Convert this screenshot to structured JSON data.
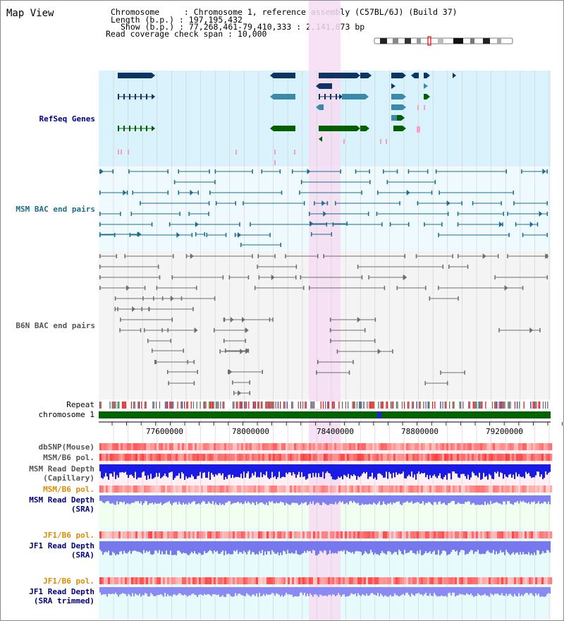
{
  "view_title": "Map View",
  "info": {
    "chromosome": "Chromosome     : Chromosome 1, reference assembly (C57BL/6J) (Build 37)",
    "length": "Length (b.p.) : 197,195,432",
    "show": "Show (b.p.) : 77,268,461-79,410,333 : 2,141,873 bp",
    "span": "Read coverage check span : 10,000"
  },
  "tracks": {
    "refseq": "RefSeq Genes",
    "msm_bac": "MSM BAC end pairs",
    "b6n_bac": "B6N BAC end pairs",
    "repeat": "Repeat",
    "chrom": "chromosome 1",
    "dbsnp": "dbSNP(Mouse)",
    "msm_b6_pol1": "MSM/B6 pol.",
    "msm_depth_cap_1": "MSM Read Depth",
    "msm_depth_cap_2": "(Capillary)",
    "msm_b6_pol2": "MSM/B6 pol.",
    "msm_depth_sra_1": "MSM Read Depth",
    "msm_depth_sra_2": "(SRA)",
    "jf1_pol1": "JF1/B6 pol.",
    "jf1_depth_1": "JF1 Read Depth",
    "jf1_depth_2": "(SRA)",
    "jf1_pol2": "JF1/B6 pol.",
    "jf1_trim_1": "JF1 Read Depth",
    "jf1_trim_2": "(SRA trimmed)"
  },
  "axis_ticks": [
    "77600000",
    "78000000",
    "78400000",
    "78800000",
    "79200000"
  ],
  "colors": {
    "refseq_bg": "#d9f2fb",
    "bac_bg": "#eefafd",
    "highlight": "#f6dcf2",
    "gene_dark": "#0d3463",
    "gene_mid": "#3a8aaa",
    "gene_green": "#006000",
    "msm_bac": "#1d6e8c",
    "b6n_bac": "#6e6e6e",
    "repeat_red": "#e21b1b",
    "chromosome": "#006400",
    "capillary_blue": "#1a1ae6",
    "sra_blue": "#8080f0",
    "label_navy": "#000080",
    "label_orange": "#e08a00"
  }
}
